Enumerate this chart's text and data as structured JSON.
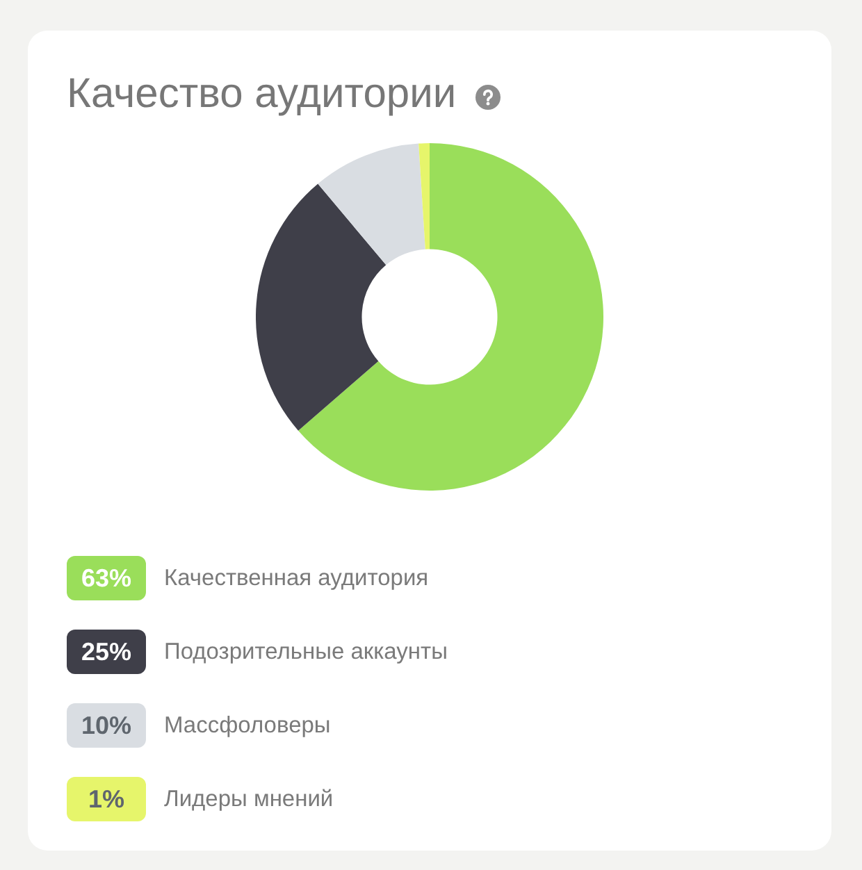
{
  "chart_data": {
    "type": "donut",
    "title": "Качество аудитории",
    "categories": [
      "Качественная аудитория",
      "Подозрительные аккаунты",
      "Массфоловеры",
      "Лидеры мнений"
    ],
    "values": [
      63,
      25,
      10,
      1
    ],
    "colors": [
      "#9ade5a",
      "#3f3f49",
      "#d9dde2",
      "#e6f56b"
    ],
    "value_labels": [
      "63%",
      "25%",
      "10%",
      "1%"
    ],
    "legend": "bottom"
  }
}
